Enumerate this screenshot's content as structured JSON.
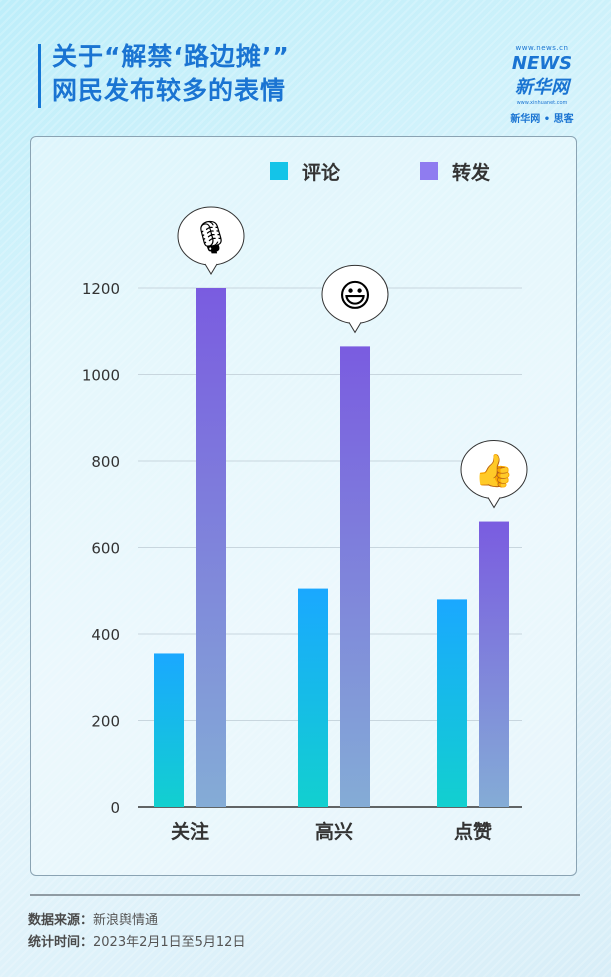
{
  "header": {
    "title_line1": "关于“解禁‘路边摊’”",
    "title_line2": "网民发布较多的表情"
  },
  "logo": {
    "url_top": "www.news.cn",
    "mark": "NEWS 新华网",
    "url_bottom": "www.xinhuanet.com",
    "subtitle": "新华网 • 思客"
  },
  "chart_data": {
    "type": "bar",
    "categories": [
      "关注",
      "高兴",
      "点赞"
    ],
    "series": [
      {
        "name": "评论",
        "values": [
          355,
          505,
          480
        ],
        "color_top": "#1aa8ff",
        "color_bottom": "#12d0cf"
      },
      {
        "name": "转发",
        "values": [
          1200,
          1065,
          660
        ],
        "color_top": "#7a5ce0",
        "color_bottom": "#84acd6"
      }
    ],
    "category_emojis": [
      {
        "icon": "microphone-icon",
        "glyph": "🎙"
      },
      {
        "icon": "smiley-face-icon",
        "glyph": "😃"
      },
      {
        "icon": "thumbs-up-icon",
        "glyph": "👍"
      }
    ],
    "yticks": [
      0,
      200,
      400,
      600,
      800,
      1000,
      1200
    ],
    "ylim": [
      0,
      1200
    ],
    "grid": true,
    "legend_placement": "top"
  },
  "footer": {
    "source_label": "数据来源：",
    "source_value": "新浪舆情通",
    "period_label": "统计时间：",
    "period_value": "2023年2月1日至5月12日"
  }
}
